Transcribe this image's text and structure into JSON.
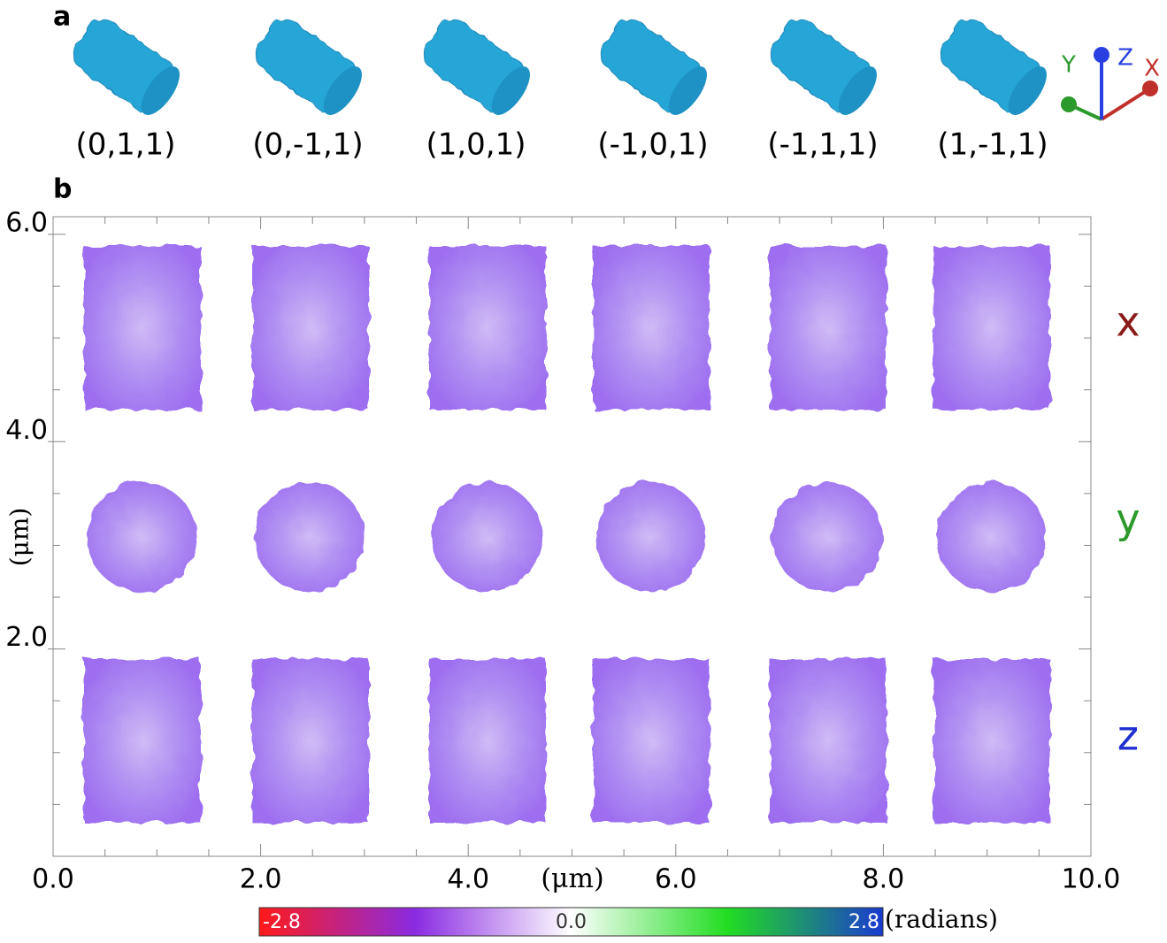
{
  "panel_a": {
    "label": "a",
    "orientations": [
      "(0,1,1)",
      "(0,-1,1)",
      "(1,0,1)",
      "(-1,0,1)",
      "(-1,1,1)",
      "(1,-1,1)"
    ],
    "axes": [
      {
        "name": "X",
        "color": "#c0302a"
      },
      {
        "name": "Y",
        "color": "#2a9a2a"
      },
      {
        "name": "Z",
        "color": "#2a40e0"
      }
    ]
  },
  "chart_data": {
    "type": "image",
    "label": "b",
    "xlabel": "(μm)",
    "ylabel": "(μm)",
    "xlim": [
      0,
      10
    ],
    "ylim": [
      0,
      6.17
    ],
    "xticks": [
      {
        "value": 0,
        "label": "0.0"
      },
      {
        "value": 2,
        "label": "2.0"
      },
      {
        "value": 4,
        "label": "4.0"
      },
      {
        "value": 6,
        "label": "6.0"
      },
      {
        "value": 8,
        "label": "8.0"
      },
      {
        "value": 10,
        "label": "10.0"
      }
    ],
    "yticks": [
      {
        "value": 2,
        "label": "2.0"
      },
      {
        "value": 4,
        "label": "4.0"
      },
      {
        "value": 6,
        "label": "6.0"
      }
    ],
    "xminorticks": [
      0.5,
      1,
      1.5,
      2.5,
      3,
      3.5,
      4.5,
      5,
      5.5,
      6.5,
      7,
      7.5,
      8.5,
      9,
      9.5
    ],
    "yminorticks": [
      0.5,
      1,
      1.5,
      2.5,
      3,
      3.5,
      4.5,
      5,
      5.5
    ],
    "rows": [
      {
        "name": "x",
        "color": "#8b1a1a"
      },
      {
        "name": "y",
        "color": "#2a9a2a"
      },
      {
        "name": "z",
        "color": "#2030d0"
      }
    ],
    "colorbar": {
      "label": "(radians)",
      "colors": [
        "#ff1a1a",
        "#8a2be2",
        "#ffffff",
        "#22dd22",
        "#1a3ad0"
      ],
      "range": [
        -2.8,
        2.8
      ],
      "ticks": [
        {
          "value": -2.8,
          "label": "-2.8"
        },
        {
          "value": 0,
          "label": "0.0"
        },
        {
          "value": 2.8,
          "label": "2.8"
        }
      ]
    }
  }
}
